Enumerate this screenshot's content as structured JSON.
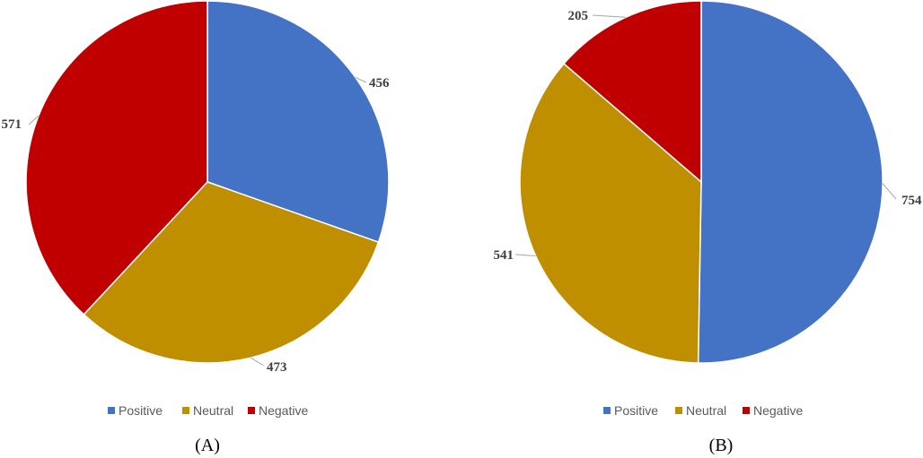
{
  "chart_data": [
    {
      "type": "pie",
      "caption": "(A)",
      "categories": [
        "Positive",
        "Neutral",
        "Negative"
      ],
      "values": [
        456,
        473,
        571
      ],
      "colors": [
        "#4472C4",
        "#BF8F00",
        "#C00000"
      ],
      "legend": [
        "Positive",
        "Neutral",
        "Negative"
      ],
      "legend_position": "bottom",
      "start": "top, clockwise"
    },
    {
      "type": "pie",
      "caption": "(B)",
      "categories": [
        "Positive",
        "Neutral",
        "Negative"
      ],
      "values": [
        754,
        541,
        205
      ],
      "colors": [
        "#4472C4",
        "#BF8F00",
        "#C00000"
      ],
      "legend": [
        "Positive",
        "Neutral",
        "Negative"
      ],
      "legend_position": "bottom",
      "start": "top, clockwise"
    }
  ]
}
